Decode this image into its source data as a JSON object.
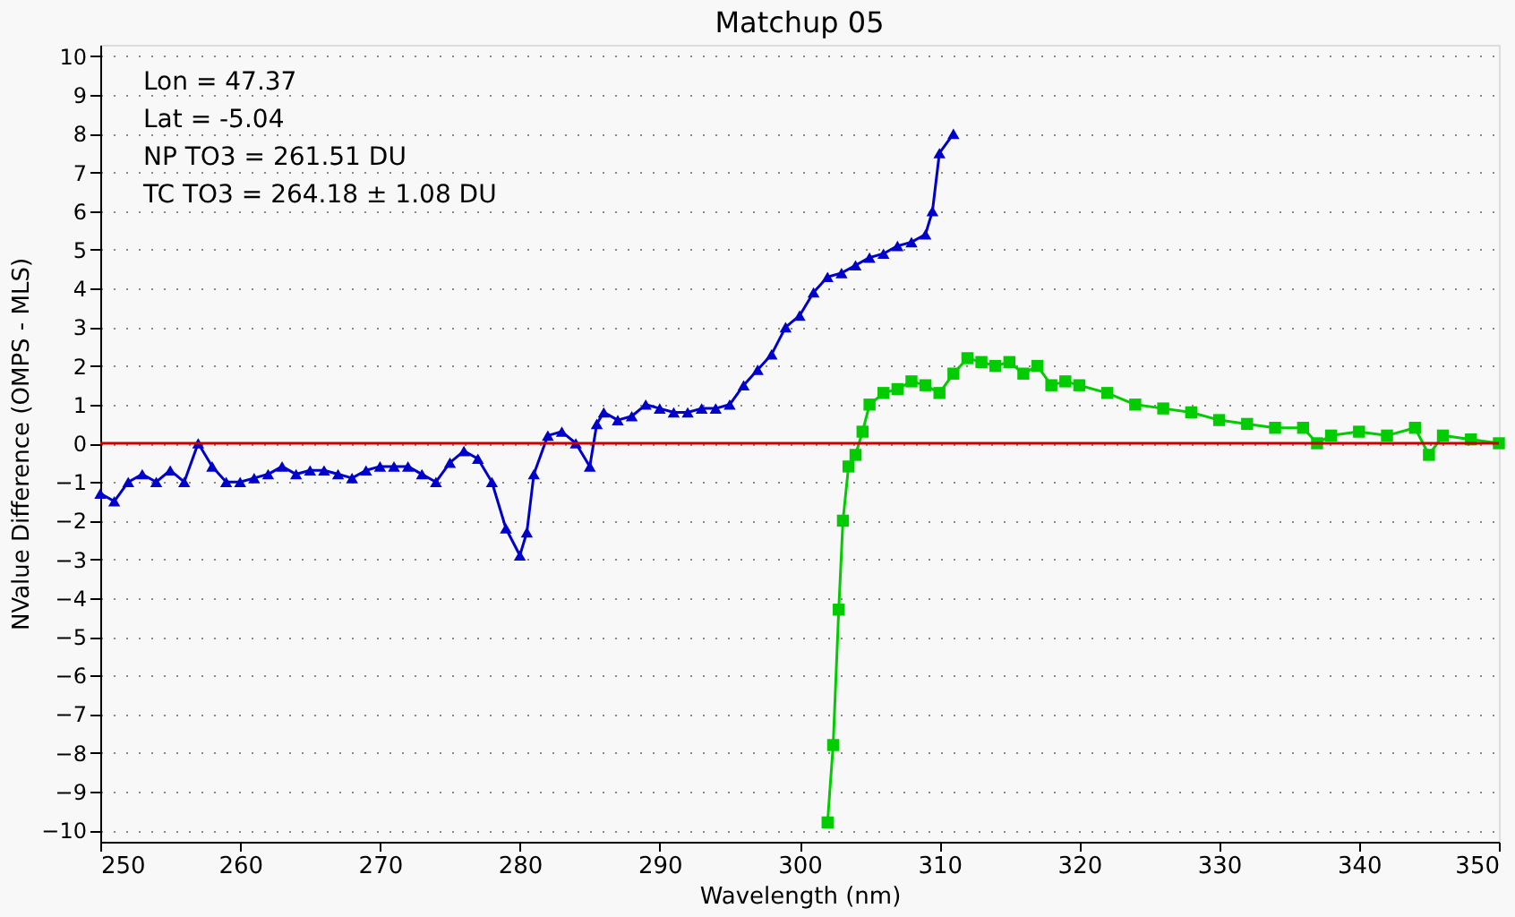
{
  "chart_data": {
    "type": "line",
    "title": "Matchup 05",
    "xlabel": "Wavelength (nm)",
    "ylabel": "NValue Difference (OMPS - MLS)",
    "xlim": [
      250,
      350
    ],
    "xticks": [
      250,
      260,
      270,
      280,
      290,
      300,
      310,
      320,
      330,
      340,
      350
    ],
    "ylim": [
      -10.3,
      10.3
    ],
    "yticks": [
      -10,
      -9,
      -8,
      -7,
      -6,
      -5,
      -4,
      -3,
      -2,
      -1,
      0,
      1,
      2,
      3,
      4,
      5,
      6,
      7,
      8,
      9,
      10
    ],
    "grid": "y",
    "annotations": [
      "Lon =    47.37",
      "Lat =    -5.04",
      "NP TO3 =  261.51 DU",
      "TC TO3 =  264.18 ± 1.08 DU"
    ],
    "ref_lines": [
      {
        "axis": "y",
        "value": 0,
        "color": "#cc0000"
      }
    ],
    "series": [
      {
        "color": "#0000cc",
        "marker": "triangle",
        "x": [
          250,
          251,
          252,
          253,
          254,
          255,
          256,
          257,
          258,
          259,
          260,
          261,
          262,
          263,
          264,
          265,
          266,
          267,
          268,
          269,
          270,
          271,
          272,
          273,
          274,
          275,
          276,
          277,
          278,
          279,
          280,
          280.5,
          281,
          282,
          283,
          284,
          285,
          285.5,
          286,
          287,
          288,
          289,
          290,
          291,
          292,
          293,
          294,
          295,
          296,
          297,
          298,
          299,
          300,
          301,
          302,
          303,
          304,
          305,
          306,
          307,
          308,
          309,
          309.5,
          310,
          311
        ],
        "values": [
          -1.3,
          -1.5,
          -1.0,
          -0.8,
          -1.0,
          -0.7,
          -1.0,
          0.0,
          -0.6,
          -1.0,
          -1.0,
          -0.9,
          -0.8,
          -0.6,
          -0.8,
          -0.7,
          -0.7,
          -0.8,
          -0.9,
          -0.7,
          -0.6,
          -0.6,
          -0.6,
          -0.8,
          -1.0,
          -0.5,
          -0.2,
          -0.4,
          -1.0,
          -2.2,
          -2.9,
          -2.3,
          -0.8,
          0.2,
          0.3,
          0.0,
          -0.6,
          0.5,
          0.8,
          0.6,
          0.7,
          1.0,
          0.9,
          0.8,
          0.8,
          0.9,
          0.9,
          1.0,
          1.5,
          1.9,
          2.3,
          3.0,
          3.3,
          3.9,
          4.3,
          4.4,
          4.6,
          4.8,
          4.9,
          5.1,
          5.2,
          5.4,
          6.0,
          7.5,
          8.0
        ]
      },
      {
        "color": "#00cc00",
        "marker": "square",
        "x": [
          302,
          302.4,
          302.8,
          303.1,
          303.5,
          304,
          304.5,
          305,
          306,
          307,
          308,
          309,
          310,
          311,
          312,
          313,
          314,
          315,
          316,
          317,
          318,
          319,
          320,
          322,
          324,
          326,
          328,
          330,
          332,
          334,
          336,
          337,
          338,
          340,
          342,
          344,
          345,
          346,
          348,
          350
        ],
        "values": [
          -9.8,
          -7.8,
          -4.3,
          -2.0,
          -0.6,
          -0.3,
          0.3,
          1.0,
          1.3,
          1.4,
          1.6,
          1.5,
          1.3,
          1.8,
          2.2,
          2.1,
          2.0,
          2.1,
          1.8,
          2.0,
          1.5,
          1.6,
          1.5,
          1.3,
          1.0,
          0.9,
          0.8,
          0.6,
          0.5,
          0.4,
          0.4,
          0.0,
          0.2,
          0.3,
          0.2,
          0.4,
          -0.3,
          0.2,
          0.1,
          0.0
        ]
      }
    ]
  }
}
